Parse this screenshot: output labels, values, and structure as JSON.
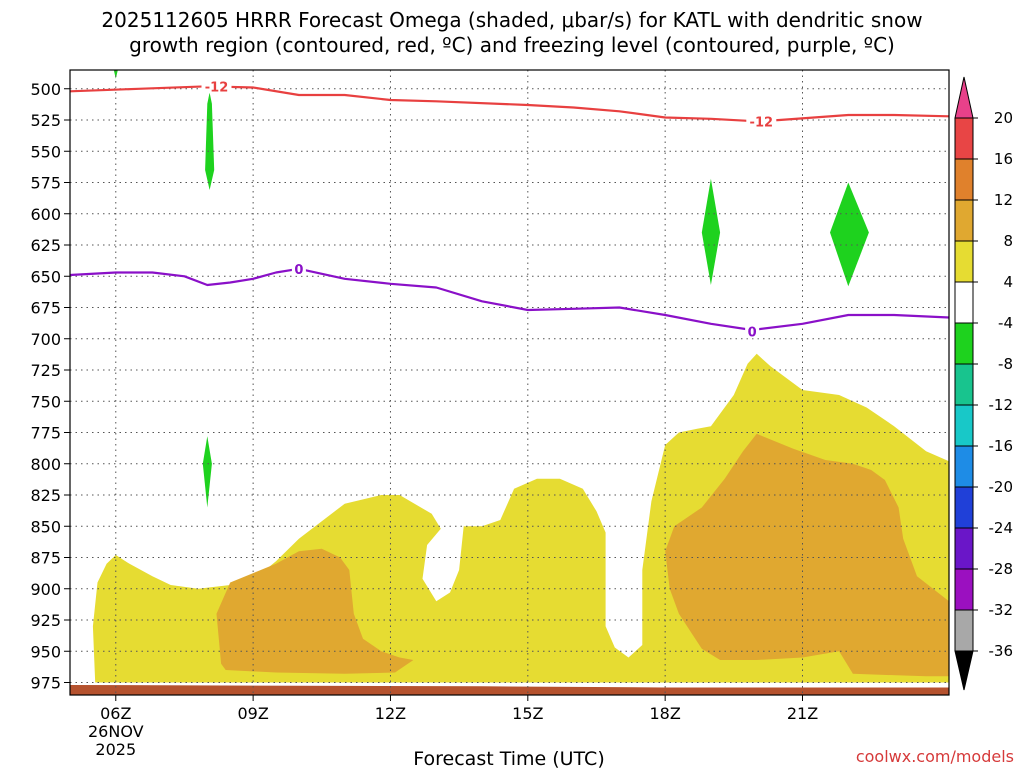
{
  "chart_data": {
    "type": "heatmap",
    "title_lines": [
      "2025112605 HRRR Forecast Omega (shaded, μbar/s) for KATL with dendritic snow",
      "growth region (contoured, red, ºC) and freezing level (contoured, purple, ºC)"
    ],
    "xlabel": "Forecast Time (UTC)",
    "ylabel": "",
    "credit": "coolwx.com/models",
    "x_range_hours_utc": [
      5,
      24.2
    ],
    "y_range_hPa": [
      485,
      985
    ],
    "y_ticks": [
      500,
      525,
      550,
      575,
      600,
      625,
      650,
      675,
      700,
      725,
      750,
      775,
      800,
      825,
      850,
      875,
      900,
      925,
      950,
      975
    ],
    "x_ticks": [
      {
        "hour": 6,
        "label": "06Z",
        "sub": [
          "26NOV",
          "2025"
        ]
      },
      {
        "hour": 9,
        "label": "09Z"
      },
      {
        "hour": 12,
        "label": "12Z"
      },
      {
        "hour": 15,
        "label": "15Z"
      },
      {
        "hour": 18,
        "label": "18Z"
      },
      {
        "hour": 21,
        "label": "21Z"
      }
    ],
    "grid": true,
    "colorbar": {
      "levels": [
        20,
        16,
        12,
        8,
        4,
        -4,
        -8,
        -12,
        -16,
        -20,
        -24,
        -28,
        -32,
        -36
      ],
      "colors": [
        "#e8418a",
        "#e84545",
        "#e0812c",
        "#e0a830",
        "#e6dc32",
        "#ffffff",
        "#1ed21e",
        "#18c48e",
        "#18c8c8",
        "#1e8ce6",
        "#2040d8",
        "#6a16c8",
        "#9b10c0",
        "#a8a8a8",
        "#000000"
      ]
    },
    "series": [
      {
        "name": "dendritic snow growth -12C",
        "color": "#e84040",
        "label": "-12",
        "points": [
          [
            5.0,
            502
          ],
          [
            6.5,
            500
          ],
          [
            8.0,
            498
          ],
          [
            9.0,
            499
          ],
          [
            10.0,
            505
          ],
          [
            11.0,
            505
          ],
          [
            12.0,
            509
          ],
          [
            13.0,
            510
          ],
          [
            15.0,
            513
          ],
          [
            16.0,
            515
          ],
          [
            17.0,
            518
          ],
          [
            18.0,
            523
          ],
          [
            19.0,
            524
          ],
          [
            20.0,
            526
          ],
          [
            20.5,
            525
          ],
          [
            22.0,
            521
          ],
          [
            23.0,
            521
          ],
          [
            24.2,
            522
          ]
        ],
        "label_positions": [
          [
            8.2,
            498
          ],
          [
            20.1,
            526
          ]
        ]
      },
      {
        "name": "freezing level 0C",
        "color": "#8a10c8",
        "label": "0",
        "points": [
          [
            5.0,
            649
          ],
          [
            6.0,
            647
          ],
          [
            6.8,
            647
          ],
          [
            7.5,
            650
          ],
          [
            8.0,
            657
          ],
          [
            8.5,
            655
          ],
          [
            9.0,
            652
          ],
          [
            9.5,
            647
          ],
          [
            10.0,
            644
          ],
          [
            11.0,
            652
          ],
          [
            12.0,
            656
          ],
          [
            13.0,
            659
          ],
          [
            14.0,
            670
          ],
          [
            15.0,
            677
          ],
          [
            16.0,
            676
          ],
          [
            17.0,
            675
          ],
          [
            18.0,
            681
          ],
          [
            19.0,
            688
          ],
          [
            19.9,
            693
          ],
          [
            21.0,
            688
          ],
          [
            22.0,
            681
          ],
          [
            23.0,
            681
          ],
          [
            24.2,
            683
          ]
        ],
        "label_positions": [
          [
            10.0,
            644
          ],
          [
            19.9,
            694
          ]
        ]
      }
    ],
    "shaded_regions": [
      {
        "level": "4",
        "color": "#e6dc32",
        "polygons": [
          [
            [
              5.55,
              975
            ],
            [
              5.5,
              930
            ],
            [
              5.6,
              895
            ],
            [
              5.8,
              880
            ],
            [
              6.0,
              873
            ],
            [
              6.3,
              880
            ],
            [
              6.8,
              890
            ],
            [
              7.2,
              897
            ],
            [
              7.8,
              900
            ],
            [
              8.5,
              897
            ],
            [
              9.0,
              893
            ],
            [
              9.5,
              878
            ],
            [
              10.0,
              860
            ],
            [
              11.0,
              832
            ],
            [
              11.8,
              825
            ],
            [
              12.2,
              825
            ],
            [
              12.9,
              840
            ],
            [
              13.1,
              852
            ],
            [
              12.8,
              865
            ],
            [
              12.7,
              892
            ],
            [
              13.0,
              910
            ],
            [
              13.3,
              903
            ],
            [
              13.5,
              885
            ],
            [
              13.6,
              850
            ],
            [
              14.0,
              850
            ],
            [
              14.4,
              845
            ],
            [
              14.7,
              820
            ],
            [
              15.2,
              812
            ],
            [
              15.7,
              812
            ],
            [
              16.2,
              820
            ],
            [
              16.5,
              838
            ],
            [
              16.7,
              855
            ],
            [
              16.7,
              930
            ],
            [
              16.9,
              947
            ],
            [
              17.2,
              955
            ],
            [
              17.5,
              945
            ],
            [
              17.5,
              885
            ],
            [
              17.7,
              830
            ],
            [
              18.0,
              785
            ],
            [
              18.3,
              775
            ],
            [
              18.7,
              772
            ],
            [
              19.0,
              770
            ],
            [
              19.5,
              745
            ],
            [
              19.8,
              720
            ],
            [
              20.0,
              712
            ],
            [
              20.3,
              722
            ],
            [
              21.0,
              741
            ],
            [
              21.8,
              745
            ],
            [
              22.4,
              755
            ],
            [
              23.0,
              770
            ],
            [
              23.7,
              790
            ],
            [
              24.2,
              798
            ],
            [
              24.2,
              975
            ]
          ]
        ]
      },
      {
        "level": "8",
        "color": "#e0a830",
        "polygons": [
          [
            [
              8.3,
              960
            ],
            [
              8.2,
              920
            ],
            [
              8.5,
              895
            ],
            [
              9.5,
              880
            ],
            [
              10.0,
              870
            ],
            [
              10.5,
              868
            ],
            [
              10.9,
              875
            ],
            [
              11.1,
              885
            ],
            [
              11.2,
              920
            ],
            [
              11.4,
              940
            ],
            [
              11.8,
              950
            ],
            [
              12.2,
              955
            ],
            [
              12.5,
              957
            ],
            [
              12.1,
              967
            ],
            [
              11.0,
              968
            ],
            [
              9.5,
              967
            ],
            [
              8.4,
              965
            ]
          ],
          [
            [
              18.0,
              870
            ],
            [
              18.2,
              850
            ],
            [
              18.8,
              835
            ],
            [
              19.3,
              812
            ],
            [
              19.7,
              790
            ],
            [
              20.0,
              776
            ],
            [
              20.8,
              788
            ],
            [
              21.5,
              797
            ],
            [
              22.1,
              800
            ],
            [
              22.5,
              805
            ],
            [
              22.8,
              813
            ],
            [
              23.1,
              835
            ],
            [
              23.2,
              860
            ],
            [
              23.5,
              890
            ],
            [
              24.2,
              910
            ],
            [
              24.2,
              970
            ],
            [
              23.7,
              970
            ],
            [
              22.1,
              968
            ],
            [
              21.8,
              950
            ],
            [
              21.0,
              955
            ],
            [
              20.0,
              957
            ],
            [
              19.2,
              957
            ],
            [
              18.8,
              948
            ],
            [
              18.3,
              920
            ],
            [
              18.1,
              900
            ]
          ]
        ]
      },
      {
        "level": "-4",
        "color": "#1ed21e",
        "polygons": [
          [
            [
              7.95,
              565
            ],
            [
              8.0,
              512
            ],
            [
              8.05,
              503
            ],
            [
              8.1,
              512
            ],
            [
              8.15,
              565
            ],
            [
              8.05,
              581
            ]
          ],
          [
            [
              7.9,
              800
            ],
            [
              8.0,
              778
            ],
            [
              8.1,
              800
            ],
            [
              8.0,
              835
            ]
          ],
          [
            [
              5.95,
              484
            ],
            [
              6.05,
              484
            ],
            [
              6.0,
              492
            ]
          ],
          [
            [
              18.8,
              615
            ],
            [
              19.0,
              572
            ],
            [
              19.2,
              615
            ],
            [
              19.0,
              657
            ]
          ],
          [
            [
              21.6,
              615
            ],
            [
              22.0,
              575
            ],
            [
              22.45,
              615
            ],
            [
              22.0,
              658
            ]
          ]
        ]
      }
    ],
    "ground_band": {
      "color": "#b5522e",
      "points": [
        [
          5.0,
          977
        ],
        [
          14.0,
          978
        ],
        [
          18.0,
          979
        ],
        [
          24.2,
          979
        ]
      ]
    }
  }
}
